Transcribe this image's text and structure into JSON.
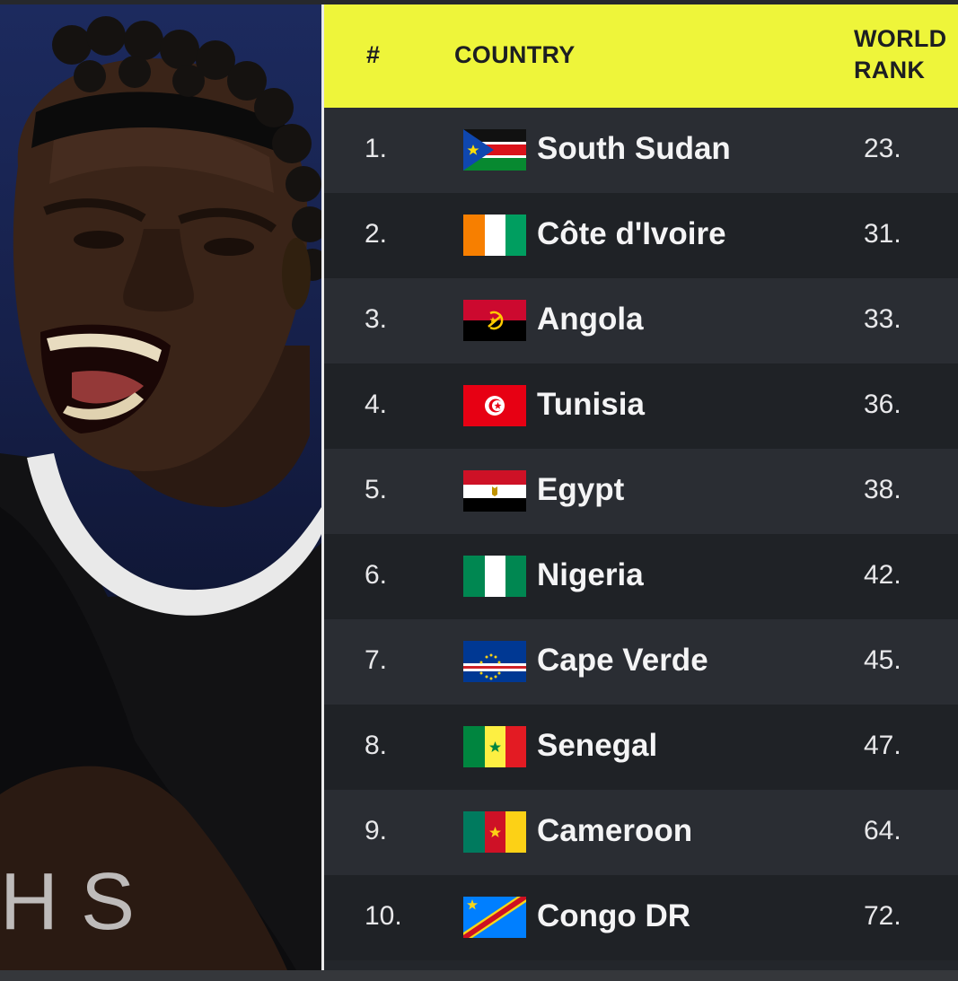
{
  "header": {
    "num_label": "#",
    "country_label": "COUNTRY",
    "rank_label_line1": "WORLD",
    "rank_label_line2": "RANK"
  },
  "colors": {
    "header_bg": "#eef53a",
    "row_odd": "#2a2d33",
    "row_even": "#1f2226",
    "text": "#f4f4f5"
  },
  "rows": [
    {
      "pos": "1.",
      "country": "South Sudan",
      "rank": "23.",
      "flag": "south-sudan-flag-icon"
    },
    {
      "pos": "2.",
      "country": "Côte d'Ivoire",
      "rank": "31.",
      "flag": "cote-divoire-flag-icon"
    },
    {
      "pos": "3.",
      "country": "Angola",
      "rank": "33.",
      "flag": "angola-flag-icon"
    },
    {
      "pos": "4.",
      "country": "Tunisia",
      "rank": "36.",
      "flag": "tunisia-flag-icon"
    },
    {
      "pos": "5.",
      "country": "Egypt",
      "rank": "38.",
      "flag": "egypt-flag-icon"
    },
    {
      "pos": "6.",
      "country": "Nigeria",
      "rank": "42.",
      "flag": "nigeria-flag-icon"
    },
    {
      "pos": "7.",
      "country": "Cape Verde",
      "rank": "45.",
      "flag": "cape-verde-flag-icon"
    },
    {
      "pos": "8.",
      "country": "Senegal",
      "rank": "47.",
      "flag": "senegal-flag-icon"
    },
    {
      "pos": "9.",
      "country": "Cameroon",
      "rank": "64.",
      "flag": "cameroon-flag-icon"
    },
    {
      "pos": "10.",
      "country": "Congo DR",
      "rank": "72.",
      "flag": "congo-dr-flag-icon"
    }
  ]
}
